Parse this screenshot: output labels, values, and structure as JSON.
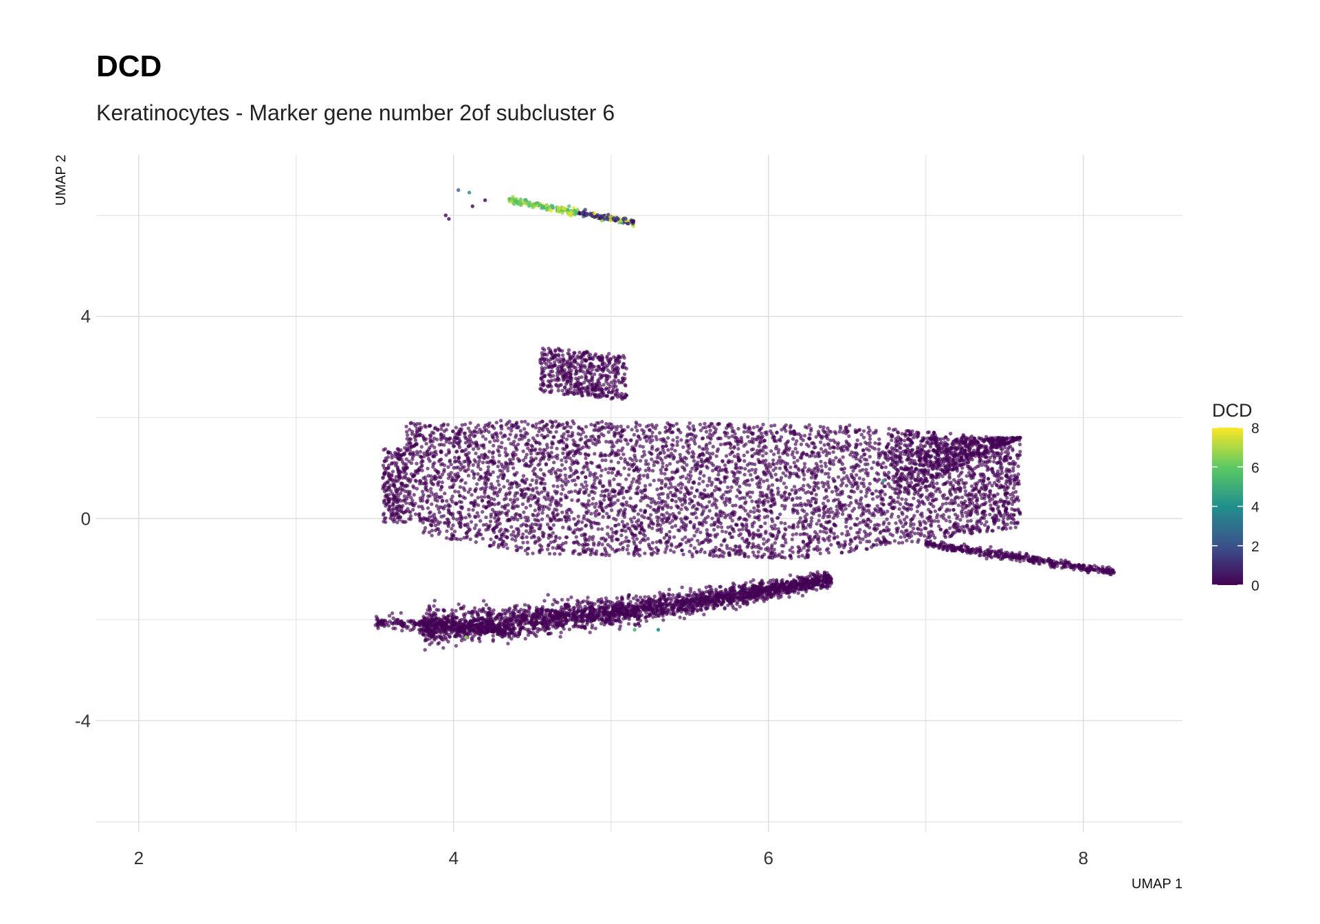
{
  "chart_data": {
    "type": "scatter",
    "title": "DCD",
    "subtitle": "Keratinocytes - Marker gene number 2of subcluster 6",
    "xlabel": "UMAP 1",
    "ylabel": "UMAP 2",
    "xlim": [
      1.73,
      8.63
    ],
    "ylim": [
      -6.2,
      7.2
    ],
    "x_ticks": [
      2,
      4,
      6,
      8
    ],
    "y_ticks": [
      -4,
      0,
      4
    ],
    "grid": true,
    "legend": {
      "title": "DCD",
      "position": "right",
      "ticks": [
        0,
        2,
        4,
        6,
        8
      ],
      "range": [
        0,
        8
      ],
      "colormap": [
        "#440154",
        "#3b528b",
        "#21908d",
        "#5dc963",
        "#fde725"
      ]
    },
    "clusters": [
      {
        "region": "main body",
        "x_range": [
          3.55,
          7.6
        ],
        "y_range": [
          -2.5,
          2.1
        ],
        "expression": 0
      },
      {
        "region": "upper protrusion",
        "x_range": [
          4.55,
          5.1
        ],
        "y_range": [
          2.4,
          3.5
        ],
        "expression": 0
      },
      {
        "region": "right tail",
        "x_range": [
          7.0,
          8.2
        ],
        "y_range": [
          -1.1,
          -0.5
        ],
        "expression": 0
      },
      {
        "region": "lower wing",
        "x_range": [
          3.5,
          6.4
        ],
        "y_range": [
          -2.5,
          -1.0
        ],
        "expression": 0
      },
      {
        "region": "top strip",
        "x_range": [
          4.3,
          5.15
        ],
        "y_range": [
          5.9,
          6.4
        ],
        "expression": 7
      }
    ]
  }
}
